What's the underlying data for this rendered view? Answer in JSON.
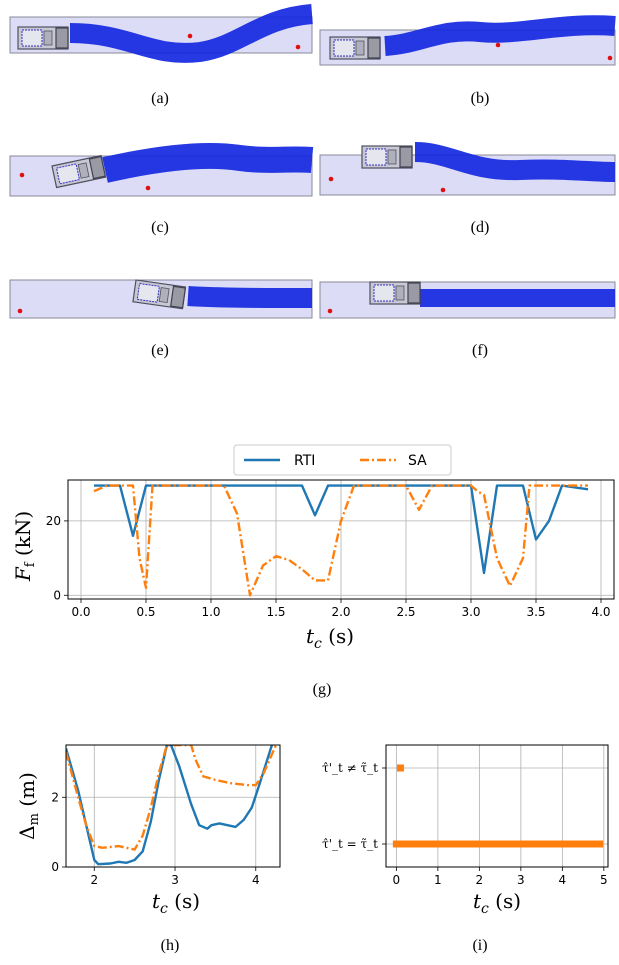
{
  "captions": [
    "(a)",
    "(b)",
    "(c)",
    "(d)",
    "(e)",
    "(f)",
    "(g)",
    "(h)",
    "(i)"
  ],
  "colors": {
    "rti": "#1f77b4",
    "sa": "#ff7f0e",
    "lane_fill": "#dcdcf6",
    "trajectory": "#1428e0",
    "obstacle": "#e01010"
  },
  "chart_data": [
    {
      "type": "line",
      "panel": "(g)",
      "ylabel": "F_f (kN)",
      "xlabel": "t_c (s)",
      "xlim": [
        -0.1,
        4.1
      ],
      "ylim": [
        -1,
        31
      ],
      "xticks": [
        "0.0",
        "0.5",
        "1.0",
        "1.5",
        "2.0",
        "2.5",
        "3.0",
        "3.5",
        "4.0"
      ],
      "yticks": [
        "0",
        "20"
      ],
      "grid": true,
      "legend": "top-center, above plot",
      "series": [
        {
          "name": "RTI",
          "style": "solid",
          "x": [
            0.1,
            0.3,
            0.4,
            0.5,
            0.6,
            1.7,
            1.8,
            1.9,
            2.0,
            3.0,
            3.1,
            3.2,
            3.4,
            3.5,
            3.6,
            3.7,
            3.9
          ],
          "y": [
            29.5,
            29.5,
            16,
            29.5,
            29.5,
            29.5,
            21.5,
            29.5,
            29.5,
            29.5,
            6,
            29.5,
            29.5,
            15,
            20,
            29.5,
            28.5
          ]
        },
        {
          "name": "SA",
          "style": "dashdot",
          "x": [
            0.1,
            0.2,
            0.4,
            0.45,
            0.5,
            0.55,
            0.6,
            1.1,
            1.2,
            1.3,
            1.4,
            1.5,
            1.6,
            1.7,
            1.8,
            1.9,
            2.0,
            2.1,
            2.5,
            2.6,
            2.7,
            3.0,
            3.05,
            3.1,
            3.2,
            3.3,
            3.4,
            3.45,
            3.5,
            3.9
          ],
          "y": [
            28,
            29.5,
            29.5,
            10,
            2,
            29.5,
            29.5,
            29.5,
            22,
            0,
            8,
            10.5,
            9.5,
            7,
            4,
            4,
            20,
            29.5,
            29.5,
            23,
            29.5,
            29.5,
            28,
            27,
            10,
            2.5,
            10,
            29.5,
            29.5,
            29.5
          ]
        }
      ]
    },
    {
      "type": "line",
      "panel": "(h)",
      "ylabel": "Δ_m (m)",
      "xlabel": "t_c (s)",
      "xlim": [
        1.65,
        4.3
      ],
      "ylim": [
        0,
        3.5
      ],
      "xticks": [
        "2",
        "3",
        "4"
      ],
      "yticks": [
        "0",
        "2"
      ],
      "grid": true,
      "series": [
        {
          "name": "RTI",
          "style": "solid",
          "x": [
            1.65,
            1.8,
            1.9,
            2.0,
            2.05,
            2.2,
            2.3,
            2.4,
            2.5,
            2.6,
            2.7,
            2.8,
            2.9,
            2.95,
            3.05,
            3.2,
            3.3,
            3.4,
            3.45,
            3.55,
            3.65,
            3.75,
            3.85,
            3.95,
            4.05,
            4.2
          ],
          "y": [
            3.4,
            2.2,
            1.2,
            0.2,
            0.08,
            0.1,
            0.15,
            0.12,
            0.2,
            0.45,
            1.3,
            2.5,
            3.5,
            3.5,
            2.9,
            1.8,
            1.2,
            1.1,
            1.2,
            1.25,
            1.2,
            1.15,
            1.35,
            1.7,
            2.4,
            3.5
          ]
        },
        {
          "name": "SA",
          "style": "dashdot",
          "x": [
            1.65,
            1.8,
            1.9,
            2.0,
            2.1,
            2.3,
            2.4,
            2.5,
            2.6,
            2.7,
            2.8,
            2.9,
            3.2,
            3.25,
            3.35,
            3.5,
            3.7,
            3.9,
            4.0,
            4.1,
            4.25
          ],
          "y": [
            3.3,
            2.0,
            1.2,
            0.6,
            0.55,
            0.6,
            0.55,
            0.5,
            0.9,
            1.7,
            2.7,
            3.5,
            3.5,
            3.1,
            2.6,
            2.5,
            2.4,
            2.35,
            2.35,
            2.7,
            3.5
          ]
        }
      ]
    },
    {
      "type": "scatter",
      "panel": "(i)",
      "xlabel": "t_c (s)",
      "xlim": [
        -0.25,
        5.1
      ],
      "xticks": [
        "0",
        "1",
        "2",
        "3",
        "4",
        "5"
      ],
      "categories": [
        "τ̂'_t = τ̃_t",
        "τ̂'_t ≠ τ̃_t"
      ],
      "grid": true,
      "series": [
        {
          "name": "SA",
          "points": [
            [
              0.0,
              0
            ],
            [
              0.1,
              1
            ],
            [
              0.15,
              0
            ],
            [
              0.2,
              0
            ],
            [
              0.3,
              0
            ],
            [
              0.5,
              0
            ],
            [
              1.0,
              0
            ],
            [
              1.5,
              0
            ],
            [
              2.0,
              0
            ],
            [
              2.5,
              0
            ],
            [
              3.0,
              0
            ],
            [
              3.5,
              0
            ],
            [
              4.0,
              0
            ],
            [
              4.5,
              0
            ],
            [
              4.9,
              0
            ]
          ],
          "note": "dense markers from 0.15 to 4.9 along lower row"
        }
      ]
    }
  ],
  "legend_g": {
    "rti": "RTI",
    "sa": "SA"
  }
}
